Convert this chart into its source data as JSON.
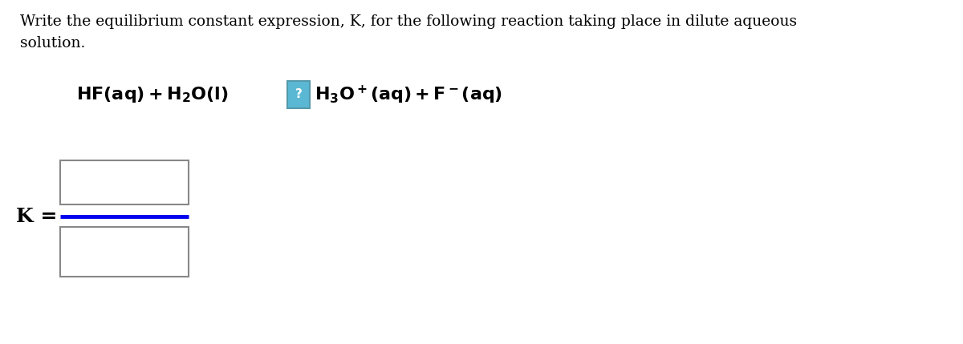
{
  "background_color": "#ffffff",
  "title_text_line1": "Write the equilibrium constant expression, K, for the following reaction taking place in dilute aqueous",
  "title_text_line2": "solution.",
  "k_label": "K =",
  "question_box_color": "#5bb8d4",
  "question_box_border": "#5599aa",
  "question_mark": "?",
  "fraction_line_color": "#0000ee",
  "box_edge_color": "#888888",
  "text_color": "#000000",
  "figsize": [
    12.0,
    4.29
  ],
  "dpi": 100,
  "title_fontsize": 13.5,
  "reaction_fontsize": 16,
  "k_fontsize": 18
}
